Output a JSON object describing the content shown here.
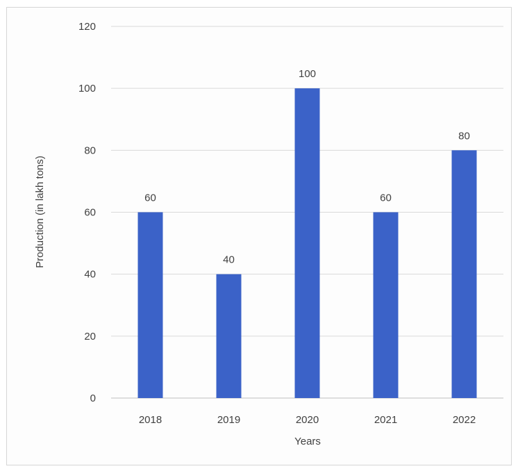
{
  "chart_data": {
    "type": "bar",
    "categories": [
      "2018",
      "2019",
      "2020",
      "2021",
      "2022"
    ],
    "values": [
      60,
      40,
      100,
      60,
      80
    ],
    "data_labels": [
      "60",
      "40",
      "100",
      "60",
      "80"
    ],
    "xlabel": "Years",
    "ylabel": "Production (in lakh tons)",
    "ylim": [
      0,
      120
    ],
    "yticks": [
      "0",
      "20",
      "40",
      "60",
      "80",
      "100",
      "120"
    ],
    "grid": true,
    "bar_color": "#3b62c8"
  }
}
